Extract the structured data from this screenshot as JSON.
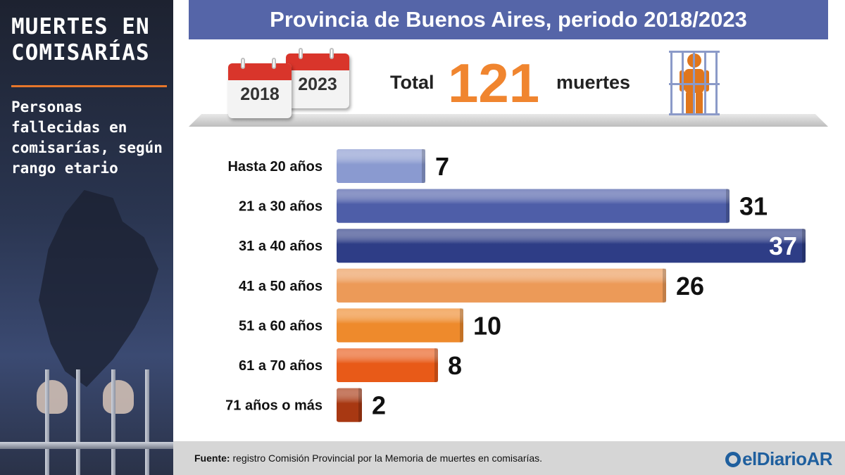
{
  "left_panel": {
    "title": "MUERTES EN COMISARÍAS",
    "subtitle": "Personas fallecidas en comisarías, según rango etario"
  },
  "header": {
    "title": "Provincia de Buenos Aires, periodo 2018/2023"
  },
  "total": {
    "years": [
      "2018",
      "2023"
    ],
    "label": "Total",
    "value": "121",
    "unit": "muertes"
  },
  "colors": {
    "header_band": "#5565a8",
    "accent_orange": "#f0852f",
    "title_rule": "#e7762a",
    "brand_blue": "#1f5f9e"
  },
  "icons": [
    "calendar-icon",
    "prisoner-behind-bars-icon",
    "eldiarioar-logo"
  ],
  "chart_data": {
    "type": "bar",
    "orientation": "horizontal",
    "categories": [
      "Hasta  20  años",
      "21 a 30 años",
      "31 a 40 años",
      "41 a 50 años",
      "51 a 60 años",
      "61 a 70 años",
      "71 años o más"
    ],
    "values": [
      7,
      31,
      37,
      26,
      10,
      8,
      2
    ],
    "bar_colors": [
      "#8a9ad0",
      "#4e5ea8",
      "#2e3d86",
      "#ec9a58",
      "#ee8a2c",
      "#e85a18",
      "#a83812"
    ],
    "xlim": [
      0,
      37
    ],
    "grid": false,
    "data_labels": true
  },
  "footer": {
    "source_label": "Fuente:",
    "source_text": "registro Comisión Provincial por la  Memoria de muertes en comisarías.",
    "brand": "elDiarioAR"
  }
}
